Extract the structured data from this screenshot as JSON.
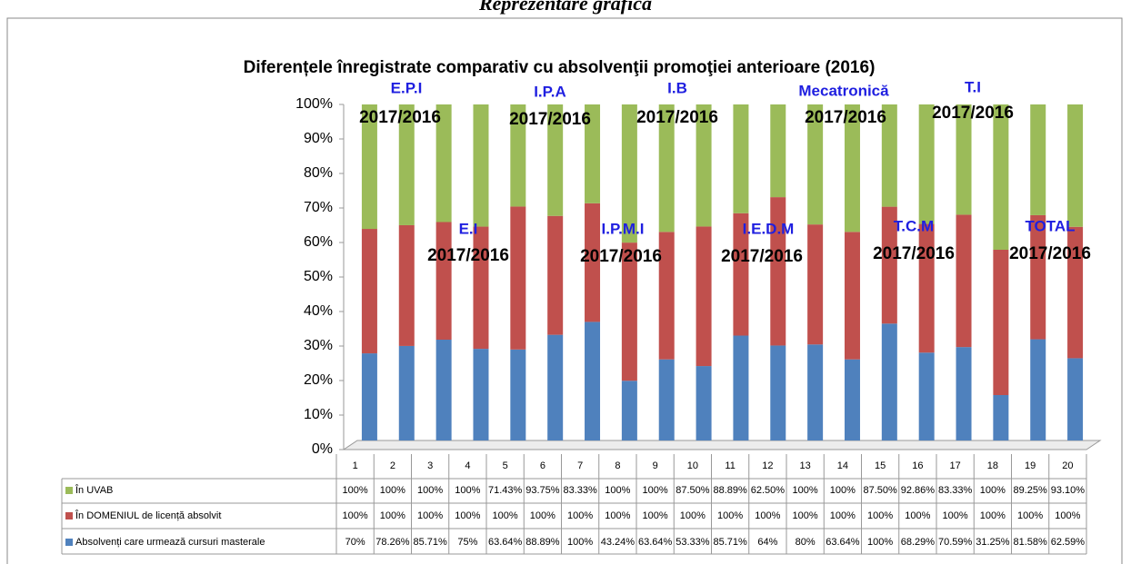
{
  "heading": "Reprezentare grafică",
  "chart_data": {
    "type": "stacked-percent-bar",
    "title": "Diferențele înregistrate comparativ cu absolvenţii promoţiei anterioare (2016)",
    "categories": [
      "1",
      "2",
      "3",
      "4",
      "5",
      "6",
      "7",
      "8",
      "9",
      "10",
      "11",
      "12",
      "13",
      "14",
      "15",
      "16",
      "17",
      "18",
      "19",
      "20"
    ],
    "series": [
      {
        "name": "În UVAB",
        "color": "#9bbb59",
        "values": [
          100,
          100,
          100,
          100,
          71.43,
          93.75,
          83.33,
          100,
          100,
          87.5,
          88.89,
          62.5,
          100,
          100,
          87.5,
          92.86,
          83.33,
          100,
          89.25,
          93.1
        ],
        "value_labels": [
          "100%",
          "100%",
          "100%",
          "100%",
          "71.43%",
          "93.75%",
          "83.33%",
          "100%",
          "100%",
          "87.50%",
          "88.89%",
          "62.50%",
          "100%",
          "100%",
          "87.50%",
          "92.86%",
          "83.33%",
          "100%",
          "89.25%",
          "93.10%"
        ]
      },
      {
        "name": "În DOMENIUL de licență absolvit",
        "color": "#c0504d",
        "values": [
          100,
          100,
          100,
          100,
          100,
          100,
          100,
          100,
          100,
          100,
          100,
          100,
          100,
          100,
          100,
          100,
          100,
          100,
          100,
          100
        ],
        "value_labels": [
          "100%",
          "100%",
          "100%",
          "100%",
          "100%",
          "100%",
          "100%",
          "100%",
          "100%",
          "100%",
          "100%",
          "100%",
          "100%",
          "100%",
          "100%",
          "100%",
          "100%",
          "100%",
          "100%",
          "100%"
        ]
      },
      {
        "name": "Absolvenți care urmează cursuri masterale",
        "color": "#4f81bd",
        "values": [
          70,
          78.26,
          85.71,
          75,
          63.64,
          88.89,
          100,
          43.24,
          63.64,
          53.33,
          85.71,
          64,
          80,
          63.64,
          100,
          68.29,
          70.59,
          31.25,
          81.58,
          62.59
        ],
        "value_labels": [
          "70%",
          "78.26%",
          "85.71%",
          "75%",
          "63.64%",
          "88.89%",
          "100%",
          "43.24%",
          "63.64%",
          "53.33%",
          "85.71%",
          "64%",
          "80%",
          "63.64%",
          "100%",
          "68.29%",
          "70.59%",
          "31.25%",
          "81.58%",
          "62.59%"
        ]
      }
    ],
    "ylim": [
      0,
      100
    ],
    "yticks": [
      {
        "value": 0,
        "label": "0%"
      },
      {
        "value": 10,
        "label": "10%"
      },
      {
        "value": 20,
        "label": "20%"
      },
      {
        "value": 30,
        "label": "30%"
      },
      {
        "value": 40,
        "label": "40%"
      },
      {
        "value": 50,
        "label": "50%"
      },
      {
        "value": 60,
        "label": "60%"
      },
      {
        "value": 70,
        "label": "70%"
      },
      {
        "value": 80,
        "label": "80%"
      },
      {
        "value": 90,
        "label": "90%"
      },
      {
        "value": 100,
        "label": "100%"
      }
    ],
    "grid": false,
    "annotations": [
      {
        "program": "E.P.I",
        "period": "2017/2016"
      },
      {
        "program": "I.P.A",
        "period": "2017/2016"
      },
      {
        "program": "I.B",
        "period": "2017/2016"
      },
      {
        "program": "Mecatronică",
        "period": "2017/2016"
      },
      {
        "program": "T.I",
        "period": "2017/2016"
      },
      {
        "program": "E.I",
        "period": "2017/2016"
      },
      {
        "program": "I.P.M.I",
        "period": "2017/2016"
      },
      {
        "program": "I.E.D.M",
        "period": "2017/2016"
      },
      {
        "program": "T.C.M",
        "period": "2017/2016"
      },
      {
        "program": "TOTAL",
        "period": "2017/2016"
      }
    ]
  }
}
